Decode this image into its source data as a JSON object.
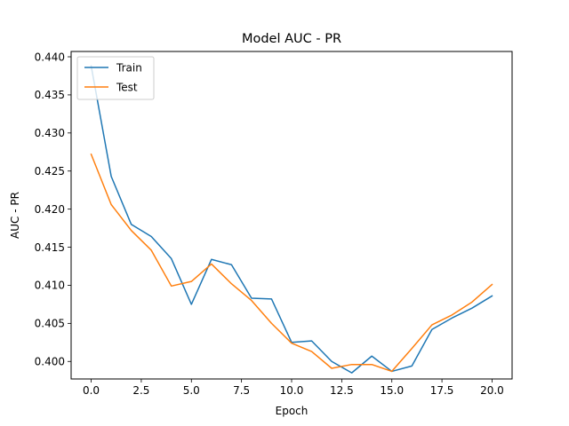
{
  "chart_data": {
    "type": "line",
    "title": "Model AUC - PR",
    "xlabel": "Epoch",
    "ylabel": "AUC - PR",
    "xlim": [
      -1.0,
      21.0
    ],
    "ylim": [
      0.3977,
      0.4407
    ],
    "xticks": [
      0.0,
      2.5,
      5.0,
      7.5,
      10.0,
      12.5,
      15.0,
      17.5,
      20.0
    ],
    "xtick_labels": [
      "0.0",
      "2.5",
      "5.0",
      "7.5",
      "10.0",
      "12.5",
      "15.0",
      "17.5",
      "20.0"
    ],
    "yticks": [
      0.4,
      0.405,
      0.41,
      0.415,
      0.42,
      0.425,
      0.43,
      0.435,
      0.44
    ],
    "ytick_labels": [
      "0.400",
      "0.405",
      "0.410",
      "0.415",
      "0.420",
      "0.425",
      "0.430",
      "0.435",
      "0.440"
    ],
    "x": [
      0,
      1,
      2,
      3,
      4,
      5,
      6,
      7,
      8,
      9,
      10,
      11,
      12,
      13,
      14,
      15,
      16,
      17,
      18,
      19,
      20
    ],
    "series": [
      {
        "name": "Train",
        "color": "#1f77b4",
        "values": [
          0.4388,
          0.4243,
          0.418,
          0.4164,
          0.4135,
          0.4075,
          0.4134,
          0.4127,
          0.4083,
          0.4082,
          0.4025,
          0.4027,
          0.4,
          0.3985,
          0.4007,
          0.3987,
          0.3994,
          0.4042,
          0.4057,
          0.407,
          0.4086
        ]
      },
      {
        "name": "Test",
        "color": "#ff7f0e",
        "values": [
          0.4272,
          0.4206,
          0.4172,
          0.4146,
          0.4099,
          0.4105,
          0.4128,
          0.4102,
          0.408,
          0.405,
          0.4024,
          0.4013,
          0.3991,
          0.3996,
          0.3996,
          0.3987,
          0.4017,
          0.4048,
          0.4061,
          0.4078,
          0.4101
        ]
      }
    ],
    "legend": {
      "location": "upper left",
      "labels": [
        "Train",
        "Test"
      ]
    },
    "grid": false
  }
}
